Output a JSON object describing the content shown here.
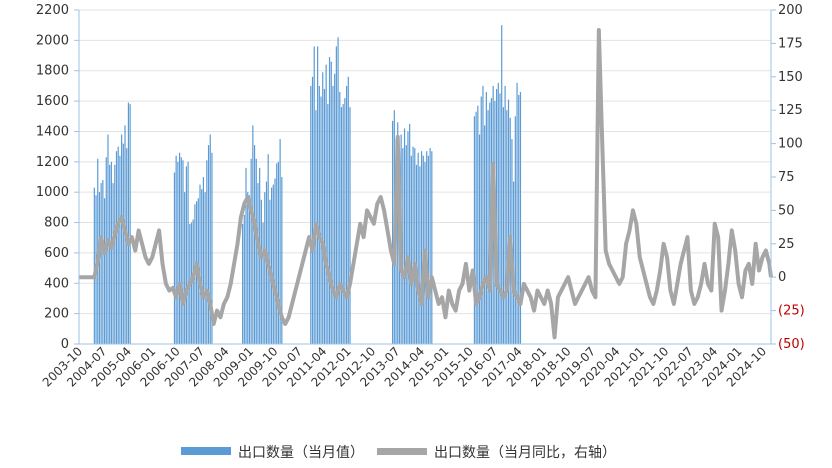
{
  "chart_data": {
    "type": "bar+line",
    "title": "",
    "x_labels": [
      "2003-10",
      "2004-07",
      "2005-04",
      "2006-01",
      "2006-10",
      "2007-07",
      "2008-04",
      "2009-01",
      "2009-10",
      "2010-07",
      "2011-04",
      "2012-01",
      "2012-10",
      "2013-07",
      "2014-04",
      "2015-01",
      "2015-10",
      "2016-07",
      "2017-04",
      "2018-01",
      "2018-10",
      "2019-07",
      "2020-04",
      "2021-01",
      "2021-10",
      "2022-07",
      "2023-04",
      "2024-01",
      "2024-10"
    ],
    "left_axis": {
      "min": 0,
      "max": 2200,
      "step": 200,
      "ticks": [
        "0",
        "200",
        "400",
        "600",
        "800",
        "1000",
        "1200",
        "1400",
        "1600",
        "1800",
        "2000",
        "2200"
      ]
    },
    "right_axis": {
      "min": -50,
      "max": 200,
      "step": 25,
      "ticks": [
        "(50)",
        "(25)",
        "0",
        "25",
        "50",
        "75",
        "100",
        "125",
        "150",
        "175",
        "200"
      ]
    },
    "series": [
      {
        "name": "出口数量（当月值）",
        "axis": "left",
        "kind": "bar",
        "color": "#5b9bd5",
        "groups": [
          {
            "start_month": 9,
            "values": [
              1030,
              980,
              1220,
              1000,
              1060,
              1080,
              960,
              1230,
              1380,
              1180,
              1200,
              1060,
              1180,
              1270,
              1300,
              1240,
              1380,
              1320,
              1440,
              1290,
              1590,
              1580
            ]
          },
          {
            "start_month": 56,
            "values": [
              1130,
              1240,
              1200,
              1260,
              1230,
              1210,
              1000,
              1170,
              1200,
              790,
              800,
              820,
              920,
              940,
              960,
              1050,
              1020,
              1100,
              1000,
              1210,
              1310,
              1380,
              1260
            ]
          },
          {
            "start_month": 96,
            "values": [
              790,
              850,
              1160,
              1000,
              980,
              1220,
              1440,
              1310,
              1220,
              1060,
              1160,
              950,
              800,
              1000,
              1070,
              1250,
              950,
              1030,
              1050,
              1090,
              1190,
              1200,
              1350,
              1100
            ]
          },
          {
            "start_month": 136,
            "values": [
              1700,
              1760,
              1960,
              1540,
              1960,
              1700,
              1630,
              1790,
              1680,
              1840,
              1580,
              1890,
              1860,
              1700,
              1780,
              1960,
              2020,
              1660,
              1560,
              1580,
              1620,
              1700,
              1760,
              1560
            ]
          },
          {
            "start_month": 184,
            "values": [
              1470,
              1540,
              1350,
              1460,
              1260,
              1380,
              1290,
              1420,
              1310,
              1400,
              1450,
              1240,
              1300,
              1290,
              1180,
              1260,
              1170,
              1270,
              1240,
              1200,
              1270,
              1240,
              1290,
              1270
            ]
          },
          {
            "start_month": 232,
            "values": [
              1500,
              1530,
              1570,
              1380,
              1630,
              1700,
              1440,
              1660,
              1540,
              1590,
              1620,
              1700,
              1600,
              1680,
              1720,
              1650,
              2100,
              1560,
              1700,
              1540,
              1610,
              1490,
              1350,
              1070,
              1500,
              1720,
              1640,
              1660
            ]
          }
        ]
      },
      {
        "name": "出口数量（当月同比，右轴）",
        "axis": "right",
        "kind": "line",
        "color": "#a6a6a6",
        "points": [
          [
            0,
            0
          ],
          [
            9,
            0
          ],
          [
            11,
            12
          ],
          [
            13,
            30
          ],
          [
            15,
            18
          ],
          [
            17,
            28
          ],
          [
            19,
            22
          ],
          [
            21,
            32
          ],
          [
            23,
            40
          ],
          [
            25,
            45
          ],
          [
            27,
            35
          ],
          [
            29,
            25
          ],
          [
            31,
            30
          ],
          [
            33,
            20
          ],
          [
            35,
            35
          ],
          [
            37,
            25
          ],
          [
            39,
            15
          ],
          [
            41,
            10
          ],
          [
            43,
            15
          ],
          [
            45,
            25
          ],
          [
            47,
            35
          ],
          [
            49,
            10
          ],
          [
            51,
            -5
          ],
          [
            53,
            -10
          ],
          [
            55,
            -8
          ],
          [
            57,
            -15
          ],
          [
            59,
            -5
          ],
          [
            61,
            -20
          ],
          [
            63,
            -10
          ],
          [
            65,
            -5
          ],
          [
            67,
            0
          ],
          [
            69,
            10
          ],
          [
            71,
            -5
          ],
          [
            73,
            -15
          ],
          [
            75,
            -10
          ],
          [
            77,
            -20
          ],
          [
            79,
            -35
          ],
          [
            81,
            -25
          ],
          [
            83,
            -30
          ],
          [
            85,
            -20
          ],
          [
            87,
            -15
          ],
          [
            89,
            -5
          ],
          [
            91,
            10
          ],
          [
            93,
            25
          ],
          [
            95,
            45
          ],
          [
            97,
            55
          ],
          [
            99,
            60
          ],
          [
            101,
            50
          ],
          [
            103,
            40
          ],
          [
            105,
            25
          ],
          [
            107,
            15
          ],
          [
            109,
            20
          ],
          [
            111,
            10
          ],
          [
            113,
            0
          ],
          [
            115,
            -10
          ],
          [
            117,
            -20
          ],
          [
            119,
            -30
          ],
          [
            121,
            -35
          ],
          [
            123,
            -30
          ],
          [
            125,
            -20
          ],
          [
            127,
            -10
          ],
          [
            129,
            0
          ],
          [
            131,
            10
          ],
          [
            133,
            20
          ],
          [
            135,
            30
          ],
          [
            137,
            20
          ],
          [
            139,
            40
          ],
          [
            141,
            30
          ],
          [
            143,
            25
          ],
          [
            145,
            10
          ],
          [
            147,
            0
          ],
          [
            149,
            -10
          ],
          [
            151,
            -15
          ],
          [
            153,
            -5
          ],
          [
            155,
            -10
          ],
          [
            157,
            -15
          ],
          [
            159,
            -5
          ],
          [
            161,
            10
          ],
          [
            163,
            25
          ],
          [
            165,
            40
          ],
          [
            167,
            30
          ],
          [
            169,
            50
          ],
          [
            171,
            45
          ],
          [
            173,
            40
          ],
          [
            175,
            55
          ],
          [
            177,
            60
          ],
          [
            179,
            50
          ],
          [
            181,
            35
          ],
          [
            183,
            20
          ],
          [
            185,
            10
          ],
          [
            187,
            105
          ],
          [
            189,
            5
          ],
          [
            191,
            0
          ],
          [
            193,
            15
          ],
          [
            195,
            -5
          ],
          [
            197,
            10
          ],
          [
            199,
            -10
          ],
          [
            201,
            -20
          ],
          [
            203,
            20
          ],
          [
            205,
            -15
          ],
          [
            207,
            0
          ],
          [
            209,
            -10
          ],
          [
            211,
            -20
          ],
          [
            213,
            -15
          ],
          [
            215,
            -30
          ],
          [
            217,
            -10
          ],
          [
            219,
            -20
          ],
          [
            221,
            -25
          ],
          [
            223,
            -10
          ],
          [
            225,
            -5
          ],
          [
            227,
            10
          ],
          [
            229,
            -10
          ],
          [
            231,
            5
          ],
          [
            233,
            -20
          ],
          [
            235,
            -15
          ],
          [
            237,
            -5
          ],
          [
            239,
            0
          ],
          [
            241,
            -10
          ],
          [
            243,
            85
          ],
          [
            245,
            -5
          ],
          [
            247,
            -10
          ],
          [
            249,
            -15
          ],
          [
            251,
            -10
          ],
          [
            253,
            30
          ],
          [
            255,
            -10
          ],
          [
            257,
            -15
          ],
          [
            259,
            -20
          ],
          [
            261,
            -5
          ],
          [
            263,
            -10
          ],
          [
            265,
            -15
          ],
          [
            267,
            -25
          ],
          [
            269,
            -10
          ],
          [
            271,
            -15
          ],
          [
            273,
            -20
          ],
          [
            275,
            -10
          ],
          [
            277,
            -20
          ],
          [
            279,
            -45
          ],
          [
            281,
            -15
          ],
          [
            283,
            -10
          ],
          [
            285,
            -5
          ],
          [
            287,
            0
          ],
          [
            289,
            -10
          ],
          [
            291,
            -20
          ],
          [
            293,
            -15
          ],
          [
            295,
            -10
          ],
          [
            297,
            -5
          ],
          [
            299,
            0
          ],
          [
            301,
            -10
          ],
          [
            303,
            -15
          ],
          [
            305,
            185
          ],
          [
            307,
            100
          ],
          [
            309,
            20
          ],
          [
            311,
            10
          ],
          [
            313,
            5
          ],
          [
            315,
            0
          ],
          [
            317,
            -5
          ],
          [
            319,
            0
          ],
          [
            321,
            25
          ],
          [
            323,
            35
          ],
          [
            325,
            50
          ],
          [
            327,
            40
          ],
          [
            329,
            15
          ],
          [
            331,
            5
          ],
          [
            333,
            -5
          ],
          [
            335,
            -15
          ],
          [
            337,
            -20
          ],
          [
            339,
            -10
          ],
          [
            341,
            5
          ],
          [
            343,
            25
          ],
          [
            345,
            15
          ],
          [
            347,
            -10
          ],
          [
            349,
            -20
          ],
          [
            351,
            -5
          ],
          [
            353,
            10
          ],
          [
            355,
            20
          ],
          [
            357,
            30
          ],
          [
            359,
            -10
          ],
          [
            361,
            -20
          ],
          [
            363,
            -15
          ],
          [
            365,
            -5
          ],
          [
            367,
            10
          ],
          [
            369,
            -5
          ],
          [
            371,
            -10
          ],
          [
            373,
            40
          ],
          [
            375,
            30
          ],
          [
            377,
            -25
          ],
          [
            379,
            -10
          ],
          [
            381,
            10
          ],
          [
            383,
            35
          ],
          [
            385,
            20
          ],
          [
            387,
            -5
          ],
          [
            389,
            -15
          ],
          [
            391,
            5
          ],
          [
            393,
            10
          ],
          [
            395,
            -5
          ],
          [
            397,
            25
          ],
          [
            399,
            5
          ],
          [
            401,
            15
          ],
          [
            403,
            20
          ],
          [
            405,
            10
          ],
          [
            406,
            0
          ]
        ],
        "month_scale": 0.5
      }
    ],
    "legend": {
      "placement": "bottom"
    },
    "grid": {
      "horizontal": true
    }
  }
}
